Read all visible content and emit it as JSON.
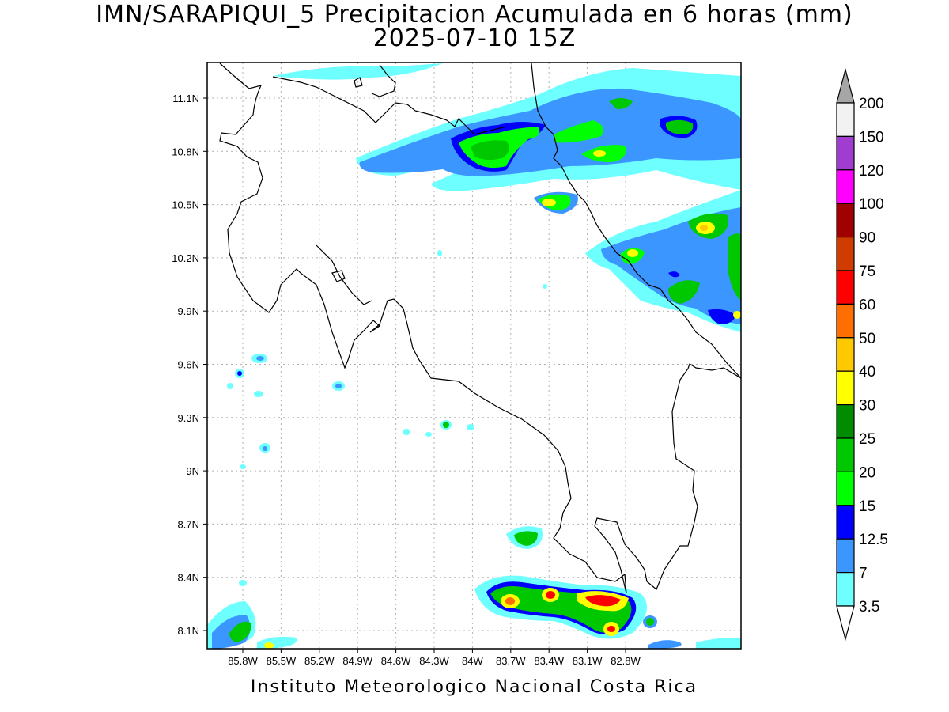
{
  "title": {
    "line1": "IMN/SARAPIQUI_5 Precipitacion Acumulada en 6 horas (mm)",
    "line2": "2025-07-10 15Z"
  },
  "footer": "Instituto Meteorologico Nacional Costa Rica",
  "map": {
    "lat_ticks": [
      "11.1N",
      "10.8N",
      "10.5N",
      "10.2N",
      "9.9N",
      "9.6N",
      "9.3N",
      "9N",
      "8.7N",
      "8.4N",
      "8.1N"
    ],
    "lon_ticks": [
      "85.8W",
      "85.5W",
      "85.2W",
      "84.9W",
      "84.6W",
      "84.3W",
      "84W",
      "83.7W",
      "83.4W",
      "83.1W",
      "82.8W"
    ],
    "grid": true
  },
  "colorbar": {
    "labels": [
      "200",
      "150",
      "120",
      "100",
      "90",
      "75",
      "60",
      "50",
      "40",
      "30",
      "25",
      "20",
      "15",
      "12.5",
      "7",
      "3.5"
    ],
    "colors": [
      "#a6a6a6",
      "#f2f2f2",
      "#a03ccf",
      "#ff00ff",
      "#a00000",
      "#d03c00",
      "#ff0000",
      "#ff6e00",
      "#ffc800",
      "#ffff00",
      "#008c00",
      "#00c800",
      "#00ff00",
      "#0000ff",
      "#3c96ff",
      "#6effff",
      "#ffffff"
    ]
  }
}
